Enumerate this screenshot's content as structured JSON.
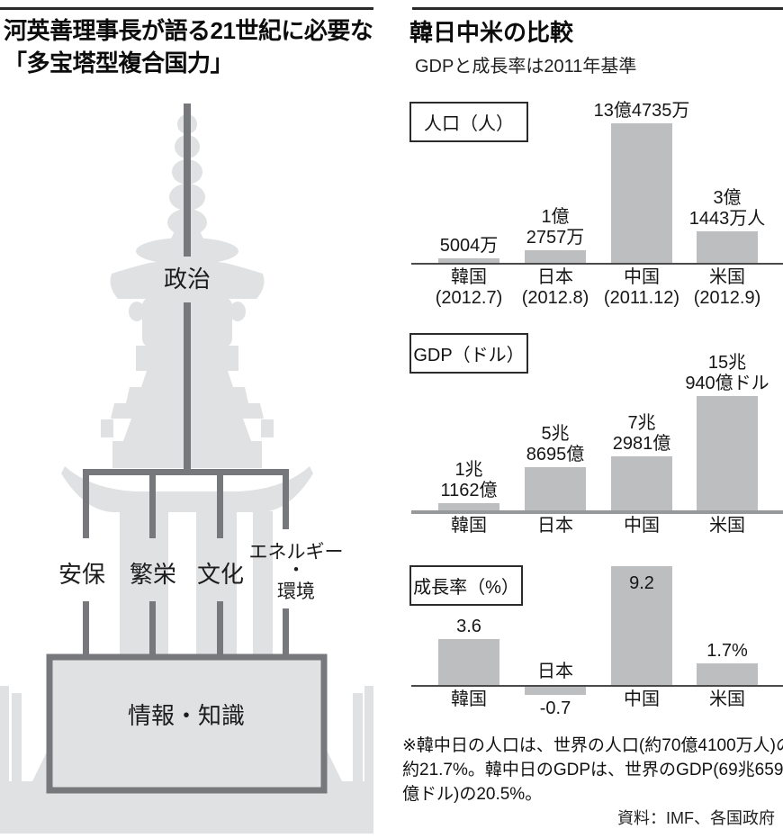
{
  "colors": {
    "silhouette": "#e0e1e3",
    "bar": "#bcbec0",
    "pagoda_line": "#77787b",
    "axis_dark": "#4a4a4a",
    "axis_gray": "#97989a",
    "text": "#1a1a1a"
  },
  "left": {
    "title_lines": [
      "河英善理事長が語る21世紀に必要な",
      "「多宝塔型複合国力」"
    ],
    "pagoda": {
      "top_label": "政治",
      "pillars": [
        [
          "安保"
        ],
        [
          "繁栄"
        ],
        [
          "文化"
        ],
        [
          "エネルギー",
          "・",
          "環境"
        ]
      ],
      "base_label": "情報・知識"
    }
  },
  "right": {
    "title": "韓日中米の比較",
    "subtitle": "GDPと成長率は2011年基準",
    "footnote_lines": [
      "※韓中日の人口は、世界の人口(約70億4100万人)の",
      "約21.7%。韓中日のGDPは、世界のGDP(69兆6596",
      "億ドル)の20.5%。"
    ],
    "source": "資料：IMF、各国政府"
  },
  "chart_data": [
    {
      "type": "bar",
      "title": "人口（人）",
      "unit": "万人",
      "categories": [
        "韓国",
        "日本",
        "中国",
        "米国"
      ],
      "category_sub": [
        "(2012.7)",
        "(2012.8)",
        "(2011.12)",
        "(2012.9)"
      ],
      "values": [
        5004,
        12757,
        134735,
        31443
      ],
      "value_labels": [
        [
          "5004万"
        ],
        [
          "1億",
          "2757万"
        ],
        [
          "13億4735万"
        ],
        [
          "3億",
          "1443万人"
        ]
      ]
    },
    {
      "type": "bar",
      "title": "GDP（ドル）",
      "unit": "億ドル",
      "categories": [
        "韓国",
        "日本",
        "中国",
        "米国"
      ],
      "values": [
        11162,
        58695,
        72981,
        150940
      ],
      "value_labels": [
        [
          "1兆",
          "1162億"
        ],
        [
          "5兆",
          "8695億"
        ],
        [
          "7兆",
          "2981億"
        ],
        [
          "15兆",
          "940億ドル"
        ]
      ]
    },
    {
      "type": "bar",
      "title": "成長率（%）",
      "unit": "%",
      "categories": [
        "韓国",
        "日本",
        "中国",
        "米国"
      ],
      "values": [
        3.6,
        -0.7,
        9.2,
        1.7
      ],
      "value_labels": [
        [
          "3.6"
        ],
        [
          "-0.7"
        ],
        [
          "9.2"
        ],
        [
          "1.7%"
        ]
      ],
      "value_label_pos": [
        "above",
        "below",
        "inside",
        "above"
      ],
      "category_pos": [
        "below",
        "above",
        "below",
        "below"
      ]
    }
  ]
}
